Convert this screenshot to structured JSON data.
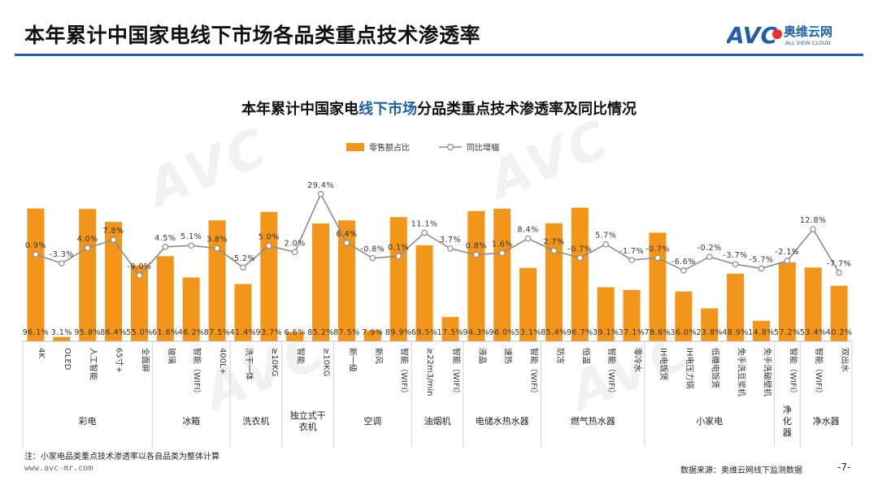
{
  "header": {
    "title": "本年累计中国家电线下市场各品类重点技术渗透率",
    "logo_text": "AVC",
    "logo_cn": "奥维云网",
    "logo_en": "ALL VIEW CLOUD"
  },
  "chart_title": {
    "part1": "本年累计中国家电",
    "highlight": "线下市场",
    "part2": "分品类重点技术渗透率及同比情况"
  },
  "watermark": "AVC",
  "footer": {
    "note": "注：小家电品类重点技术渗透率以各自品类为整体计算",
    "website": "www.avc-mr.com",
    "source": "数据来源：奥维云网线下监测数据",
    "page": "-7-"
  },
  "chart_data": {
    "type": "bar",
    "legend": [
      "零售额占比",
      "同比增幅"
    ],
    "legend_position": "top-center",
    "colors": {
      "bar": "#F39518",
      "line": "#8C8C8C",
      "marker_fill": "#FFFFFF",
      "accent": "#1F5FA8"
    },
    "categories": [
      "4K",
      "OLED",
      "人工智能",
      "65寸+",
      "全面屏",
      "玻璃",
      "智能（WIFI）",
      "400L+",
      "洗干一体",
      "≥10KG",
      "智能",
      "≥10KG",
      "新一级",
      "新风",
      "智能（WIFI）",
      "≥22m3/min",
      "智能（WIFI）",
      "液晶",
      "速热",
      "智能（WIFI）",
      "防冻",
      "恒温",
      "智能（WIFI）",
      "零冷水",
      "IH电饭煲",
      "IH电压力锅",
      "低糖电饭煲",
      "免手洗豆浆机",
      "免手洗破壁机",
      "智能（WIFI）",
      "智能（WIFI）",
      "双出水"
    ],
    "series": [
      {
        "name": "零售额占比",
        "type": "bar",
        "unit": "%",
        "values": [
          96.1,
          3.1,
          95.8,
          86.4,
          55.0,
          61.6,
          46.2,
          87.5,
          41.4,
          93.7,
          6.6,
          85.2,
          87.5,
          7.9,
          89.9,
          69.5,
          17.5,
          94.3,
          96.0,
          53.1,
          85.4,
          96.7,
          39.1,
          37.1,
          78.6,
          36.0,
          23.8,
          48.9,
          14.8,
          57.2,
          53.4,
          40.2
        ],
        "labels": [
          "96.1%",
          "3.1%",
          "95.8%",
          "86.4%",
          "55.0%",
          "61.6%",
          "46.2%",
          "87.5%",
          "41.4%",
          "93.7%",
          "6.6%",
          "85.2%",
          "87.5%",
          "7.9%",
          "89.9%",
          "69.5%",
          "17.5%",
          "94.3%",
          "96.0%",
          "53.1%",
          "85.4%",
          "96.7%",
          "39.1%",
          "37.1%",
          "78.6%",
          "36.0%",
          "23.8%",
          "48.9%",
          "14.8%",
          "57.2%",
          "53.4%",
          "40.2%"
        ]
      },
      {
        "name": "同比增幅",
        "type": "line",
        "unit": "%",
        "values": [
          0.9,
          -3.3,
          4.0,
          7.8,
          -9.0,
          4.5,
          5.1,
          3.8,
          -5.2,
          5.0,
          2.0,
          29.4,
          6.4,
          -0.8,
          0.1,
          11.1,
          3.7,
          0.8,
          1.6,
          8.4,
          2.7,
          -0.7,
          5.7,
          -1.7,
          -0.7,
          -6.6,
          -0.2,
          -3.7,
          -5.7,
          -2.1,
          12.8,
          -7.7
        ],
        "labels": [
          "0.9%",
          "-3.3%",
          "4.0%",
          "7.8%",
          "-9.0%",
          "4.5%",
          "5.1%",
          "3.8%",
          "-5.2%",
          "5.0%",
          "2.0%",
          "29.4%",
          "6.4%",
          "-0.8%",
          "0.1%",
          "11.1%",
          "3.7%",
          "0.8%",
          "1.6%",
          "8.4%",
          "2.7%",
          "-0.7%",
          "5.7%",
          "-1.7%",
          "-0.7%",
          "-6.6%",
          "-0.2%",
          "-3.7%",
          "-5.7%",
          "-2.1%",
          "12.8%",
          "-7.7%"
        ]
      }
    ],
    "groups": [
      {
        "name": "彩电",
        "count": 5
      },
      {
        "name": "冰箱",
        "count": 3
      },
      {
        "name": "洗衣机",
        "count": 2
      },
      {
        "name": "独立式干衣机",
        "count": 2
      },
      {
        "name": "空调",
        "count": 3
      },
      {
        "name": "油烟机",
        "count": 2
      },
      {
        "name": "电储水热水器",
        "count": 3
      },
      {
        "name": "燃气热水器",
        "count": 4
      },
      {
        "name": "小家电",
        "count": 5
      },
      {
        "name": "净化器",
        "count": 1
      },
      {
        "name": "净水器",
        "count": 2
      }
    ],
    "grid": false,
    "ylim_bar": [
      0,
      100
    ],
    "ylim_line": [
      -40,
      32
    ]
  }
}
